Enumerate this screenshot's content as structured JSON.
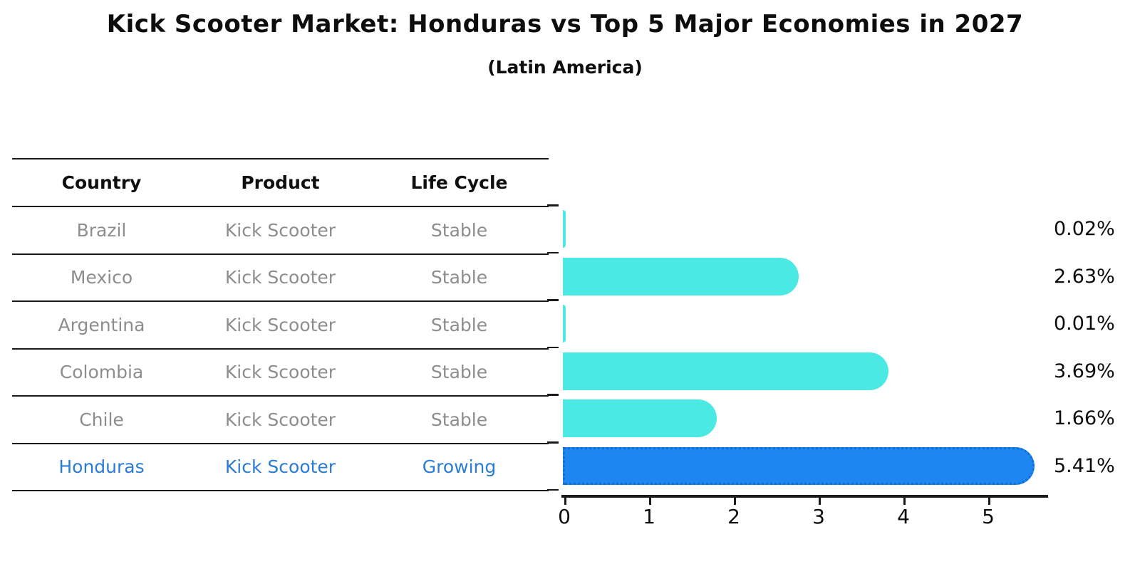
{
  "title": "Kick Scooter Market: Honduras vs Top 5 Major Economies in 2027",
  "subtitle": "(Latin America)",
  "table": {
    "headers": [
      "Country",
      "Product",
      "Life Cycle"
    ]
  },
  "chart_data": {
    "type": "bar",
    "orientation": "horizontal",
    "title": "Kick Scooter Market: Honduras vs Top 5 Major Economies in 2027",
    "subtitle": "(Latin America)",
    "categories": [
      "Brazil",
      "Mexico",
      "Argentina",
      "Colombia",
      "Chile",
      "Honduras"
    ],
    "values": [
      0.02,
      2.63,
      0.01,
      3.69,
      1.66,
      5.41
    ],
    "value_labels": [
      "0.02%",
      "2.63%",
      "0.01%",
      "3.69%",
      "1.66%",
      "5.41%"
    ],
    "rows": [
      {
        "country": "Brazil",
        "product": "Kick Scooter",
        "life_cycle": "Stable",
        "value": 0.02,
        "label": "0.02%",
        "highlight": false
      },
      {
        "country": "Mexico",
        "product": "Kick Scooter",
        "life_cycle": "Stable",
        "value": 2.63,
        "label": "2.63%",
        "highlight": false
      },
      {
        "country": "Argentina",
        "product": "Kick Scooter",
        "life_cycle": "Stable",
        "value": 0.01,
        "label": "0.01%",
        "highlight": false
      },
      {
        "country": "Colombia",
        "product": "Kick Scooter",
        "life_cycle": "Stable",
        "value": 3.69,
        "label": "3.69%",
        "highlight": false
      },
      {
        "country": "Chile",
        "product": "Kick Scooter",
        "life_cycle": "Stable",
        "value": 1.66,
        "label": "1.66%",
        "highlight": false
      },
      {
        "country": "Honduras",
        "product": "Kick Scooter",
        "life_cycle": "Growing",
        "value": 5.41,
        "label": "5.41%",
        "highlight": true
      }
    ],
    "x_ticks": [
      0,
      1,
      2,
      3,
      4,
      5
    ],
    "xlim": [
      0,
      5.65
    ],
    "grid": false,
    "legend_position": "none",
    "colors": {
      "bar_default": "#4ae9e4",
      "bar_highlight": "#1e86f0",
      "highlight_edge": "#0d6fd6",
      "highlight_text": "#2a7cd5",
      "table_text": "#8d8d8d",
      "header_text": "#0f0f0f",
      "axis": "#1a1a1a"
    }
  }
}
